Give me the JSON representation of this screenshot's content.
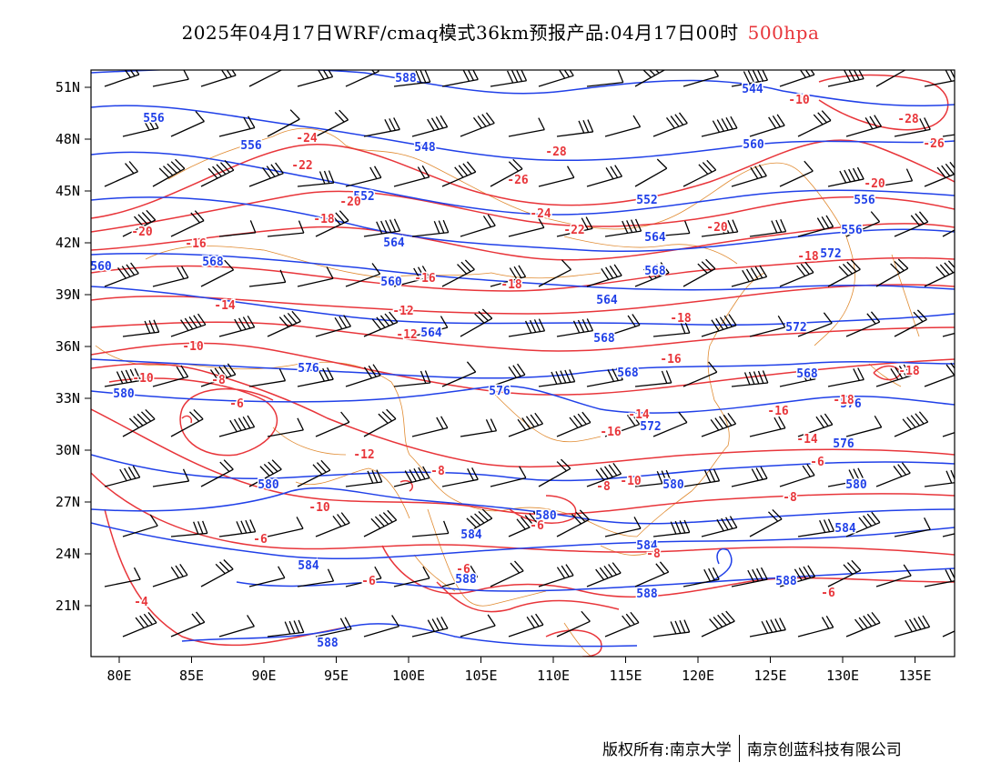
{
  "title": {
    "main": "2025年04月17日WRF/cmaq模式36km预报产品:04月17日00时",
    "level": "500hpa"
  },
  "colors": {
    "temperature": "#e8353a",
    "height": "#2040e8",
    "border": "#e08a30",
    "wind": "#000000"
  },
  "axes": {
    "x_ticks": [
      "80E",
      "85E",
      "90E",
      "95E",
      "100E",
      "105E",
      "110E",
      "115E",
      "120E",
      "125E",
      "130E",
      "135E"
    ],
    "y_ticks": [
      "51N",
      "48N",
      "45N",
      "42N",
      "39N",
      "36N",
      "33N",
      "30N",
      "27N",
      "24N",
      "21N"
    ]
  },
  "height_labels": [
    "552",
    "544",
    "556",
    "556",
    "548",
    "560",
    "552",
    "552",
    "556",
    "564",
    "564",
    "556",
    "568",
    "572",
    "560",
    "568",
    "560",
    "564",
    "564",
    "572",
    "576",
    "568",
    "568",
    "576",
    "568",
    "576",
    "572",
    "580",
    "576",
    "580",
    "580",
    "580",
    "580",
    "584",
    "584",
    "584",
    "584",
    "588",
    "588",
    "588",
    "588",
    "588"
  ],
  "temperature_labels": [
    "-22",
    "-28",
    "-26",
    "-24",
    "-22",
    "-28",
    "-20",
    "-26",
    "-24",
    "-20",
    "-18",
    "-22",
    "-20",
    "-20",
    "-18",
    "-16",
    "-18",
    "-16",
    "-14",
    "-12",
    "-18",
    "-12",
    "-10",
    "-18",
    "-16",
    "-10",
    "-18",
    "-8",
    "-14",
    "-16",
    "-6",
    "-16",
    "-14",
    "-12",
    "-6",
    "-8",
    "-10",
    "-8",
    "-10",
    "-8",
    "-8",
    "-6",
    "-8",
    "-6",
    "-6",
    "-6",
    "-4",
    "-6",
    "-10"
  ],
  "footer": {
    "left": "版权所有:南京大学",
    "right": "南京创蓝科技有限公司"
  }
}
